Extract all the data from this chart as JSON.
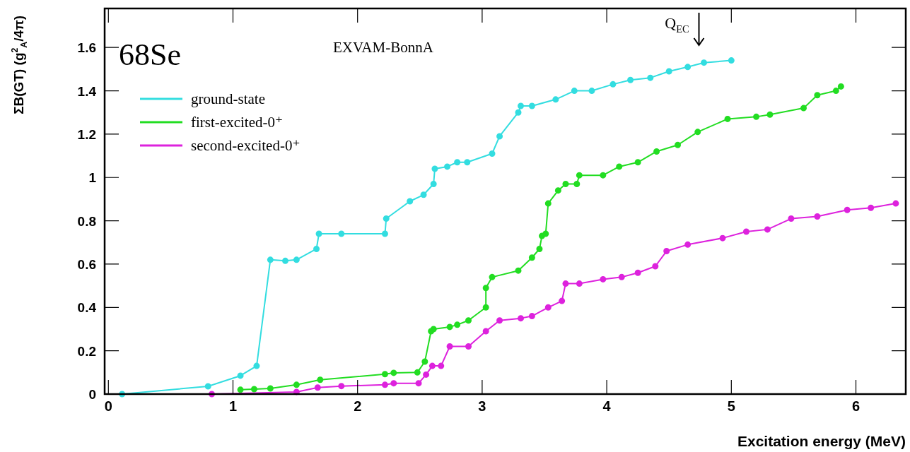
{
  "chart_data": {
    "type": "line",
    "title": "68Se",
    "subtitle": "EXVAM-BonnA",
    "xlabel": "Excitation energy (MeV)",
    "ylabel": "ΣB(GT) (g$^{2}$$_{A}$/4π)",
    "xlim": [
      -0.03,
      6.4
    ],
    "xticks": [
      0,
      1,
      2,
      3,
      4,
      5,
      6
    ],
    "ylim": [
      0,
      1.78
    ],
    "yticks": [
      0,
      0.2,
      0.4,
      0.6,
      0.8,
      1,
      1.2,
      1.4,
      1.6
    ],
    "legend": "top left",
    "marker": "circle",
    "line_style": "solid",
    "grid": false,
    "ref_lines": [
      {
        "axis": "x",
        "value": 4.74,
        "label": "Q$_{EC}$"
      }
    ],
    "series": [
      {
        "name": "ground-state",
        "color": "#33dde0",
        "x": [
          0.11,
          0.8,
          1.06,
          1.19,
          1.3,
          1.42,
          1.51,
          1.67,
          1.69,
          1.87,
          2.22,
          2.23,
          2.42,
          2.53,
          2.61,
          2.62,
          2.72,
          2.8,
          2.88,
          3.08,
          3.14,
          3.29,
          3.31,
          3.4,
          3.59,
          3.74,
          3.88,
          4.05,
          4.19,
          4.35,
          4.5,
          4.65,
          4.78,
          5.0
        ],
        "values": [
          0,
          0.036,
          0.085,
          0.13,
          0.62,
          0.615,
          0.62,
          0.67,
          0.74,
          0.74,
          0.74,
          0.81,
          0.89,
          0.92,
          0.97,
          1.04,
          1.05,
          1.07,
          1.07,
          1.11,
          1.19,
          1.3,
          1.33,
          1.33,
          1.36,
          1.4,
          1.4,
          1.43,
          1.45,
          1.46,
          1.49,
          1.51,
          1.53,
          1.54
        ]
      },
      {
        "name": "first-excited-0⁺",
        "color": "#22dd22",
        "x": [
          1.06,
          1.17,
          1.3,
          1.51,
          1.7,
          2.22,
          2.29,
          2.48,
          2.54,
          2.59,
          2.61,
          2.74,
          2.8,
          2.89,
          3.03,
          3.03,
          3.08,
          3.29,
          3.4,
          3.46,
          3.48,
          3.51,
          3.53,
          3.61,
          3.67,
          3.76,
          3.78,
          3.97,
          4.1,
          4.25,
          4.4,
          4.57,
          4.73,
          4.97,
          5.2,
          5.31,
          5.58,
          5.69,
          5.84,
          5.88
        ],
        "values": [
          0.02,
          0.023,
          0.026,
          0.043,
          0.066,
          0.092,
          0.098,
          0.1,
          0.15,
          0.29,
          0.3,
          0.31,
          0.32,
          0.34,
          0.4,
          0.49,
          0.54,
          0.57,
          0.63,
          0.67,
          0.73,
          0.74,
          0.88,
          0.94,
          0.97,
          0.97,
          1.01,
          1.01,
          1.05,
          1.07,
          1.12,
          1.15,
          1.21,
          1.27,
          1.28,
          1.29,
          1.32,
          1.38,
          1.4,
          1.42
        ]
      },
      {
        "name": "second-excited-0⁺",
        "color": "#dd22dd",
        "x": [
          0.83,
          1.51,
          1.68,
          1.87,
          2.22,
          2.29,
          2.49,
          2.55,
          2.6,
          2.67,
          2.74,
          2.89,
          3.03,
          3.14,
          3.31,
          3.4,
          3.53,
          3.64,
          3.67,
          3.78,
          3.97,
          4.12,
          4.25,
          4.39,
          4.48,
          4.65,
          4.93,
          5.12,
          5.29,
          5.48,
          5.69,
          5.93,
          6.12,
          6.32
        ],
        "values": [
          0,
          0.01,
          0.03,
          0.037,
          0.043,
          0.05,
          0.05,
          0.09,
          0.13,
          0.13,
          0.22,
          0.22,
          0.29,
          0.34,
          0.35,
          0.36,
          0.4,
          0.43,
          0.51,
          0.51,
          0.53,
          0.54,
          0.56,
          0.59,
          0.66,
          0.69,
          0.72,
          0.75,
          0.76,
          0.81,
          0.82,
          0.85,
          0.86,
          0.88
        ]
      }
    ]
  }
}
